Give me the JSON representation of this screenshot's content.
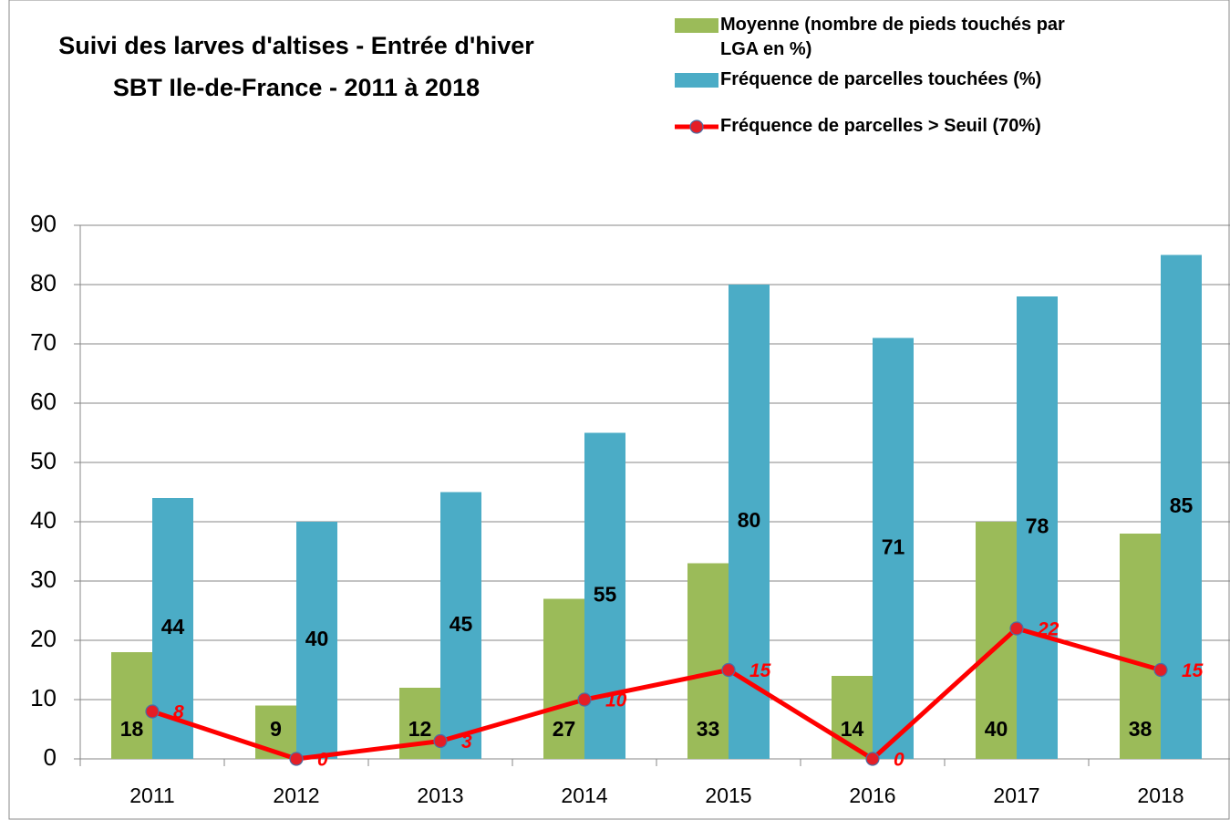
{
  "chart_data": {
    "type": "bar_line",
    "title": "Suivi des larves d'altises - Entrée d'hiver",
    "subtitle": "SBT Ile-de-France - 2011 à 2018",
    "categories": [
      "2011",
      "2012",
      "2013",
      "2014",
      "2015",
      "2016",
      "2017",
      "2018"
    ],
    "series": [
      {
        "name": "Moyenne (nombre de pieds touchés par LGA en %)",
        "color": "#9bbb59",
        "kind": "bar",
        "values": [
          18,
          9,
          12,
          27,
          33,
          14,
          40,
          38
        ]
      },
      {
        "name": "Fréquence de parcelles touchées (%)",
        "color": "#4bacc6",
        "kind": "bar",
        "values": [
          44,
          40,
          45,
          55,
          80,
          71,
          78,
          85
        ]
      },
      {
        "name": "Fréquence de parcelles > Seuil (70%)",
        "color": "#ff0000",
        "kind": "line",
        "values": [
          8,
          0,
          3,
          10,
          15,
          0,
          22,
          15
        ]
      }
    ],
    "ylim": [
      0,
      90
    ],
    "yticks": [
      0,
      10,
      20,
      30,
      40,
      50,
      60,
      70,
      80,
      90
    ],
    "grid": true
  }
}
